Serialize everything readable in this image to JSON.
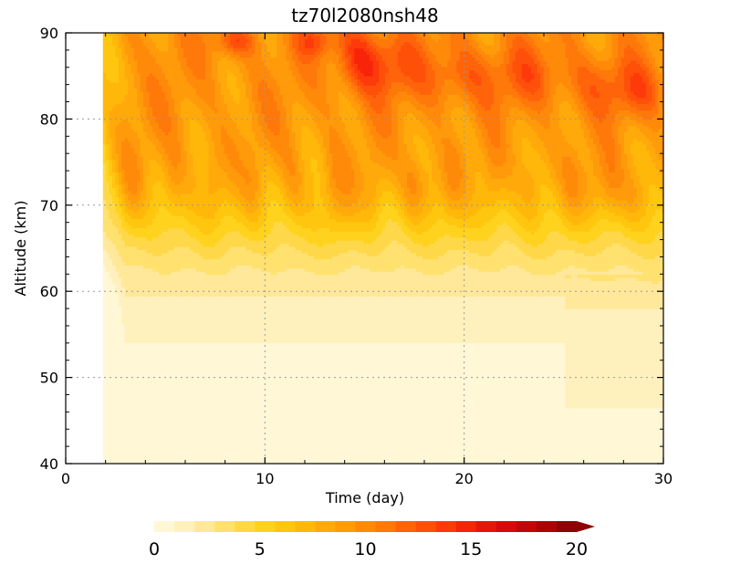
{
  "chart_data": {
    "type": "heatmap",
    "title": "tz70l2080nsh48",
    "xlabel": "Time (day)",
    "ylabel": "Altitude (km)",
    "xlim": [
      0,
      30
    ],
    "ylim": [
      40,
      90
    ],
    "x_ticks": [
      "0",
      "10",
      "20",
      "30"
    ],
    "y_ticks": [
      "40",
      "50",
      "60",
      "70",
      "80",
      "90"
    ],
    "grid": "dotted",
    "data_start_day": 1.8,
    "contour_levels": [
      0,
      1,
      2,
      3,
      4,
      5,
      6,
      7,
      8,
      9,
      10,
      11,
      12,
      13,
      14,
      15,
      16,
      17,
      18,
      19,
      20
    ],
    "colorbar": {
      "placement": "bottom",
      "extend": "max",
      "ticks": [
        "0",
        "5",
        "10",
        "15",
        "20"
      ],
      "colors": [
        "#fff7d6",
        "#fff1bd",
        "#ffe89a",
        "#ffe170",
        "#ffd84a",
        "#ffd21e",
        "#ffc60f",
        "#ffb80a",
        "#ffaa0a",
        "#ff9a0a",
        "#ff8a0a",
        "#ff780a",
        "#ff640a",
        "#ff500a",
        "#ff3a0a",
        "#f8240a",
        "#e8140a",
        "#d60a0a",
        "#c00808",
        "#a80606",
        "#8c0404"
      ]
    }
  }
}
